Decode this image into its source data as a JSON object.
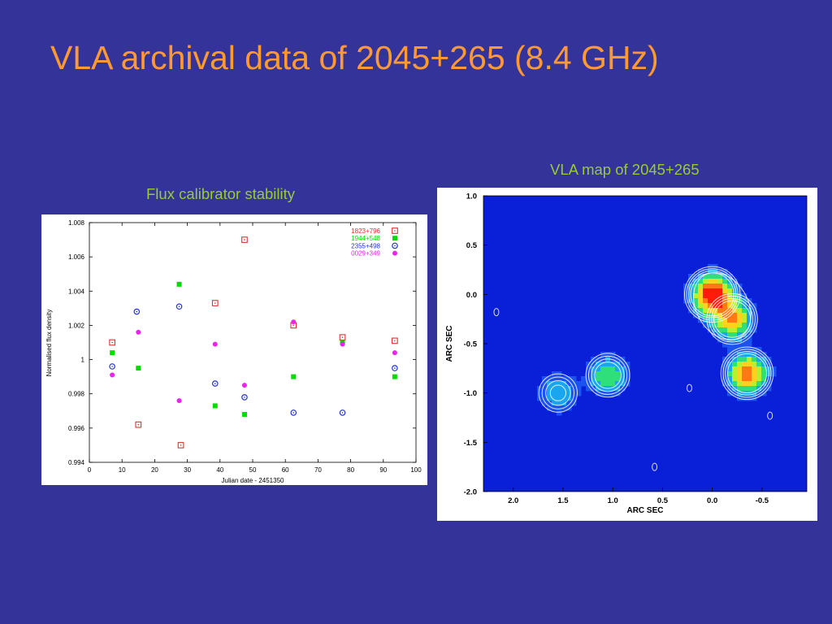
{
  "slide": {
    "title": "VLA archival data of 2045+265 (8.4 GHz)",
    "caption_left": "Flux calibrator stability",
    "caption_right": "VLA map of 2045+265",
    "background_color": "#333399",
    "title_color": "#ff9933",
    "caption_color": "#99cc33"
  },
  "chart_data": [
    {
      "type": "scatter",
      "title": "",
      "xlabel": "Julian date - 2451350",
      "ylabel": "Normalised flux density",
      "xlim": [
        0,
        100
      ],
      "ylim": [
        0.994,
        1.008
      ],
      "xticks": [
        0,
        10,
        20,
        30,
        40,
        50,
        60,
        70,
        80,
        90,
        100
      ],
      "yticks": [
        0.994,
        0.996,
        0.998,
        1,
        1.002,
        1.004,
        1.006,
        1.008
      ],
      "ytick_labels": [
        "0.994",
        "0.996",
        "0.998",
        "1",
        "1.002",
        "1.004",
        "1.006",
        "1.008"
      ],
      "grid": false,
      "legend_position": "top-right",
      "series": [
        {
          "name": "1823+796",
          "color": "#dd3333",
          "marker": "open-square",
          "x": [
            7,
            15,
            28,
            38.5,
            47.5,
            62.5,
            77.5,
            93.5
          ],
          "y": [
            1.001,
            0.9962,
            0.995,
            1.0033,
            1.007,
            1.002,
            1.0013,
            1.0011
          ]
        },
        {
          "name": "1944+548",
          "color": "#00dd00",
          "marker": "filled-square",
          "x": [
            7,
            15,
            27.5,
            38.5,
            47.5,
            62.5,
            77.5,
            93.5
          ],
          "y": [
            1.0004,
            0.9995,
            1.0044,
            0.9973,
            0.9968,
            0.999,
            1.001,
            0.999
          ]
        },
        {
          "name": "2355+498",
          "color": "#2233cc",
          "marker": "open-circle",
          "x": [
            7,
            14.5,
            27.5,
            38.5,
            47.5,
            62.5,
            77.5,
            93.5
          ],
          "y": [
            0.9996,
            1.0028,
            1.0031,
            0.9986,
            0.9978,
            0.9969,
            0.9969,
            0.9995
          ]
        },
        {
          "name": "0029+349",
          "color": "#ee22ee",
          "marker": "filled-circle",
          "x": [
            7,
            15,
            27.5,
            38.5,
            47.5,
            62.5,
            77.5,
            93.5
          ],
          "y": [
            0.9991,
            1.0016,
            0.9976,
            1.0009,
            0.9985,
            1.0022,
            1.0009,
            1.0004
          ]
        }
      ]
    },
    {
      "type": "heatmap",
      "title": "",
      "xlabel": "ARC SEC",
      "ylabel": "ARC SEC",
      "xlim": [
        2.3,
        -0.95
      ],
      "ylim": [
        -2.0,
        1.0
      ],
      "xticks": [
        2.0,
        1.5,
        1.0,
        0.5,
        0.0,
        -0.5
      ],
      "xtick_labels": [
        "2.0",
        "1.5",
        "1.0",
        "0.5",
        "0.0",
        "-0.5"
      ],
      "yticks": [
        1.0,
        0.5,
        0.0,
        -0.5,
        -1.0,
        -1.5,
        -2.0
      ],
      "ytick_labels": [
        "1.0",
        "0.5",
        "0.0",
        "-0.5",
        "-1.0",
        "-1.5",
        "-2.0"
      ],
      "colormap": [
        "#0a1fd8",
        "#1b52f0",
        "#19a6ee",
        "#2fe07a",
        "#b8f030",
        "#ffd21f",
        "#ff7a12",
        "#ff1a0a"
      ],
      "components": [
        {
          "x": 0.0,
          "y": 0.0,
          "peak": 1.0
        },
        {
          "x": -0.2,
          "y": -0.25,
          "peak": 0.68
        },
        {
          "x": -0.35,
          "y": -0.8,
          "peak": 0.78
        },
        {
          "x": 1.05,
          "y": -0.82,
          "peak": 0.42
        },
        {
          "x": 1.55,
          "y": -1.0,
          "peak": 0.3
        }
      ],
      "contour_levels": [
        0.1,
        0.14,
        0.19,
        0.25
      ],
      "noise_spots": [
        {
          "x": 2.17,
          "y": -0.18
        },
        {
          "x": 0.23,
          "y": -0.95
        },
        {
          "x": -0.58,
          "y": -1.23
        },
        {
          "x": 0.58,
          "y": -1.75
        }
      ]
    }
  ]
}
